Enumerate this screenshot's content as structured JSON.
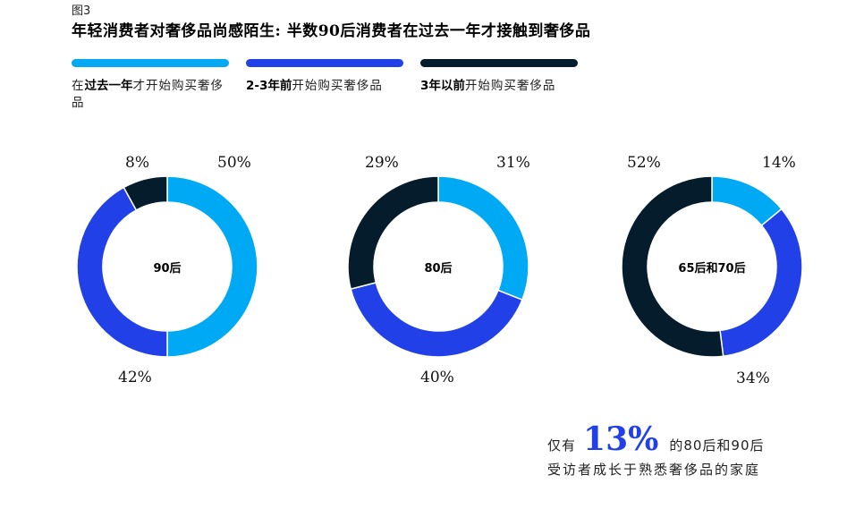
{
  "figure_label": "图3",
  "title": "年轻消费者对奢侈品尚感陌生: 半数90后消费者在过去一年才接触到奢侈品",
  "colors": {
    "past_year": "#00A9F4",
    "two_three_years": "#2140E8",
    "over_three_years": "#051C2C"
  },
  "legend": [
    {
      "pre": "在",
      "bold": "过去一年",
      "post": "才开始购买奢侈品",
      "color": "#00A9F4"
    },
    {
      "pre": "",
      "bold": "2-3年前",
      "post": "开始购买奢侈品",
      "color": "#2140E8"
    },
    {
      "pre": "",
      "bold": "3年以前",
      "post": "开始购买奢侈品",
      "color": "#051C2C"
    }
  ],
  "donuts": [
    {
      "label": "90后",
      "labels_pct": {
        "past_year": "50%",
        "two_three_years": "42%",
        "over_three_years": "8%"
      }
    },
    {
      "label": "80后",
      "labels_pct": {
        "past_year": "31%",
        "two_three_years": "40%",
        "over_three_years": "29%"
      }
    },
    {
      "label": "65后和70后",
      "labels_pct": {
        "past_year": "14%",
        "two_three_years": "34%",
        "over_three_years": "52%"
      }
    }
  ],
  "callout": {
    "prefix": "仅有",
    "big_number": "13%",
    "suffix": "的80后和90后",
    "line2": "受访者成长于熟悉奢侈品的家庭"
  },
  "chart_data": {
    "type": "pie",
    "title": "年轻消费者对奢侈品尚感陌生: 半数90后消费者在过去一年才接触到奢侈品",
    "subtitle": "图3",
    "categories": [
      "在过去一年才开始购买奢侈品",
      "2-3年前开始购买奢侈品",
      "3年以前开始购买奢侈品"
    ],
    "series": [
      {
        "name": "90后",
        "values": [
          50,
          42,
          8
        ]
      },
      {
        "name": "80后",
        "values": [
          31,
          40,
          29
        ]
      },
      {
        "name": "65后和70后",
        "values": [
          14,
          34,
          52
        ]
      }
    ],
    "style": "donut",
    "legend_position": "top",
    "annotation": "仅有13%的80后和90后受访者成长于熟悉奢侈品的家庭"
  }
}
